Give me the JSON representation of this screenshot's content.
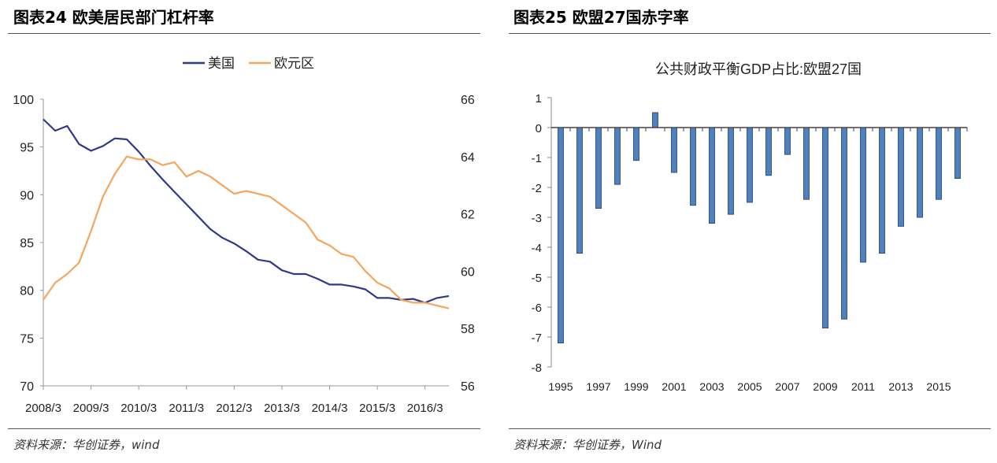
{
  "left": {
    "title": "图表24  欧美居民部门杠杆率",
    "source": "资料来源：华创证券，wind"
  },
  "right": {
    "title": "图表25   欧盟27国赤字率",
    "source": "资料来源：华创证券，Wind"
  },
  "chart_data": [
    {
      "type": "line",
      "title": "",
      "legend": [
        "美国",
        "欧元区"
      ],
      "legend_position": "top",
      "categories": [
        "2008/3",
        "2009/3",
        "2010/3",
        "2011/3",
        "2012/3",
        "2013/3",
        "2014/3",
        "2015/3",
        "2016/3"
      ],
      "y_left": {
        "min": 70,
        "max": 100,
        "ticks": [
          "100",
          "95",
          "90",
          "85",
          "80",
          "75",
          "70"
        ]
      },
      "y_right": {
        "min": 56,
        "max": 66,
        "ticks": [
          "66",
          "64",
          "62",
          "60",
          "58",
          "56"
        ]
      },
      "series": [
        {
          "name": "美国",
          "axis": "left",
          "color": "#2e3a87",
          "x": [
            0,
            0.25,
            0.5,
            0.75,
            1.0,
            1.25,
            1.5,
            1.75,
            2.0,
            2.25,
            2.5,
            2.75,
            3.0,
            3.25,
            3.5,
            3.75,
            4.0,
            4.25,
            4.5,
            4.75,
            5.0,
            5.25,
            5.5,
            5.75,
            6.0,
            6.25,
            6.5,
            6.75,
            7.0,
            7.25,
            7.5,
            7.75,
            8.0,
            8.25,
            8.5
          ],
          "values": [
            97.9,
            96.7,
            97.2,
            95.3,
            94.6,
            95.1,
            95.9,
            95.8,
            94.5,
            93.0,
            91.6,
            90.3,
            89.0,
            87.7,
            86.4,
            85.5,
            84.9,
            84.1,
            83.2,
            83.0,
            82.1,
            81.7,
            81.7,
            81.2,
            80.6,
            80.6,
            80.4,
            80.1,
            79.2,
            79.2,
            79.0,
            79.1,
            78.7,
            79.2,
            79.4
          ]
        },
        {
          "name": "欧元区",
          "axis": "right",
          "color": "#f5a55d",
          "x": [
            0,
            0.25,
            0.5,
            0.75,
            1.0,
            1.25,
            1.5,
            1.75,
            2.0,
            2.25,
            2.5,
            2.75,
            3.0,
            3.25,
            3.5,
            3.75,
            4.0,
            4.25,
            4.5,
            4.75,
            5.0,
            5.25,
            5.5,
            5.75,
            6.0,
            6.25,
            6.5,
            6.75,
            7.0,
            7.25,
            7.5,
            7.75,
            8.0,
            8.25,
            8.5
          ],
          "values": [
            59.0,
            59.6,
            59.9,
            60.3,
            61.4,
            62.6,
            63.4,
            64.0,
            63.9,
            63.9,
            63.7,
            63.8,
            63.3,
            63.5,
            63.3,
            63.0,
            62.7,
            62.8,
            62.7,
            62.6,
            62.3,
            62.0,
            61.7,
            61.1,
            60.9,
            60.6,
            60.5,
            60.0,
            59.6,
            59.4,
            59.0,
            58.9,
            58.9,
            58.8,
            58.7
          ]
        }
      ]
    },
    {
      "type": "bar",
      "title": "公共财政平衡GDP占比:欧盟27国",
      "categories": [
        "1995",
        "1996",
        "1997",
        "1998",
        "1999",
        "2000",
        "2001",
        "2002",
        "2003",
        "2004",
        "2005",
        "2006",
        "2007",
        "2008",
        "2009",
        "2010",
        "2011",
        "2012",
        "2013",
        "2014",
        "2015",
        "2016"
      ],
      "x_tick_labels": [
        "1995",
        "1997",
        "1999",
        "2001",
        "2003",
        "2005",
        "2007",
        "2009",
        "2011",
        "2013",
        "2015"
      ],
      "values": [
        -7.2,
        -4.2,
        -2.7,
        -1.9,
        -1.1,
        0.5,
        -1.5,
        -2.6,
        -3.2,
        -2.9,
        -2.5,
        -1.6,
        -0.9,
        -2.4,
        -6.7,
        -6.4,
        -4.5,
        -4.2,
        -3.3,
        -3.0,
        -2.4,
        -1.7
      ],
      "ylim": [
        -8,
        1
      ],
      "y_ticks": [
        "1",
        "0",
        "-1",
        "-2",
        "-3",
        "-4",
        "-5",
        "-6",
        "-7",
        "-8"
      ],
      "bar_color": "#4f81bd"
    }
  ]
}
